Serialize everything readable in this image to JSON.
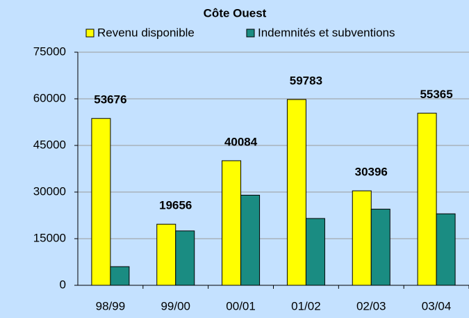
{
  "chart_data": {
    "type": "bar",
    "title": "Côte Ouest",
    "categories": [
      "98/99",
      "99/00",
      "00/01",
      "01/02",
      "02/03",
      "03/04"
    ],
    "series": [
      {
        "name": "Revenu disponible",
        "color": "#ffff00",
        "values": [
          53676,
          19656,
          40084,
          59783,
          30396,
          55365
        ],
        "data_labels": true
      },
      {
        "name": "Indemnités et subventions",
        "color": "#1a8c82",
        "values": [
          6000,
          17500,
          29000,
          21500,
          24500,
          23000
        ]
      }
    ],
    "ylim": [
      0,
      75000
    ],
    "yticks": [
      0,
      15000,
      30000,
      45000,
      60000,
      75000
    ],
    "grid": true,
    "legend": "top"
  }
}
